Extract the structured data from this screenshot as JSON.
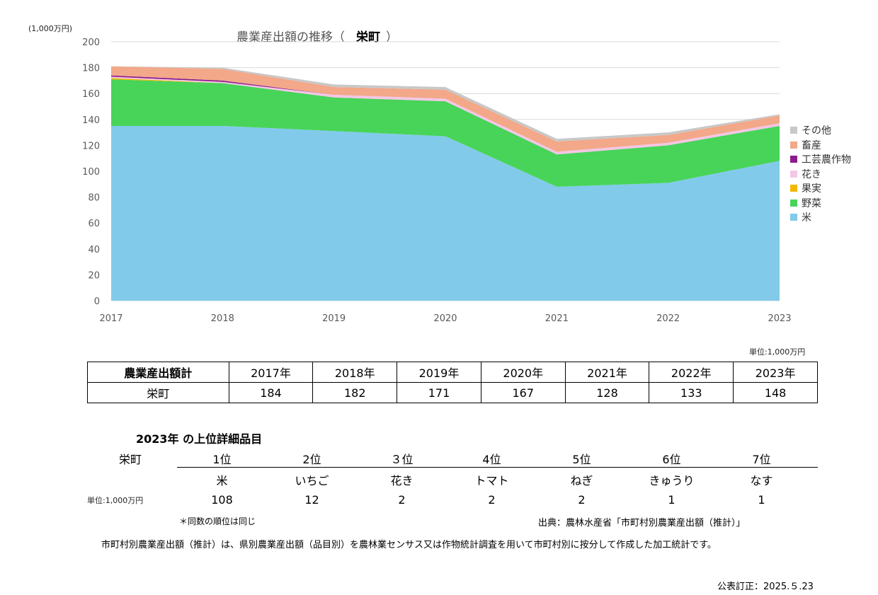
{
  "chart_data": {
    "type": "area",
    "stacked": true,
    "title_prefix": "農業産出額の推移（",
    "title_municipality": "栄町",
    "title_suffix": "）",
    "y_unit": "(1,000万円)",
    "x": [
      "2017",
      "2018",
      "2019",
      "2020",
      "2021",
      "2022",
      "2023"
    ],
    "ylim": [
      0,
      200
    ],
    "yticks": [
      "0",
      "20",
      "40",
      "60",
      "80",
      "100",
      "120",
      "140",
      "160",
      "180",
      "200"
    ],
    "grid": true,
    "legend_position": "right",
    "series": [
      {
        "name": "米",
        "color": "#82CAEA",
        "values": [
          135,
          135,
          131,
          127,
          88,
          91,
          108
        ]
      },
      {
        "name": "野菜",
        "color": "#47D459",
        "values": [
          36,
          33,
          26,
          27,
          25,
          29,
          27
        ]
      },
      {
        "name": "果実",
        "color": "#F2B900",
        "values": [
          1,
          0,
          0,
          0,
          0,
          0,
          0
        ]
      },
      {
        "name": "花き",
        "color": "#F4C6E6",
        "values": [
          1,
          1,
          2,
          2,
          2,
          2,
          2
        ]
      },
      {
        "name": "工芸農作物",
        "color": "#8C1B8C",
        "values": [
          1,
          1,
          0,
          0,
          0,
          0,
          0
        ]
      },
      {
        "name": "畜産",
        "color": "#F2A889",
        "values": [
          7,
          9,
          6,
          7,
          8,
          6,
          6
        ]
      },
      {
        "name": "その他",
        "color": "#C8C8C8",
        "values": [
          0,
          1,
          2,
          2,
          2,
          2,
          1
        ]
      }
    ]
  },
  "totals": {
    "unit": "単位:1,000万円",
    "row_header": "農業産出額計",
    "years": [
      "2017年",
      "2018年",
      "2019年",
      "2020年",
      "2021年",
      "2022年",
      "2023年"
    ],
    "municipality": "栄町",
    "values": [
      "184",
      "182",
      "171",
      "167",
      "128",
      "133",
      "148"
    ]
  },
  "ranking": {
    "title": "2023年  の上位詳細品目",
    "municipality": "栄町",
    "unit": "単位:1,000万円",
    "ranks": [
      "1位",
      "2位",
      "３位",
      "4位",
      "5位",
      "6位",
      "7位"
    ],
    "items": [
      "米",
      "いちご",
      "花き",
      "トマト",
      "ねぎ",
      "きゅうり",
      "なす"
    ],
    "values": [
      "108",
      "12",
      "2",
      "2",
      "2",
      "1",
      "1"
    ],
    "note": "＊同数の順位は同じ"
  },
  "source": "出典：農林水産省「市町村別農業産出額（推計）」",
  "footnote": "市町村別農業産出額（推計）は、県別農業産出額（品目別）を農林業センサス又は作物統計調査を用いて市町村別に按分して作成した加工統計です。",
  "published": "公表訂正：2025.５.23"
}
